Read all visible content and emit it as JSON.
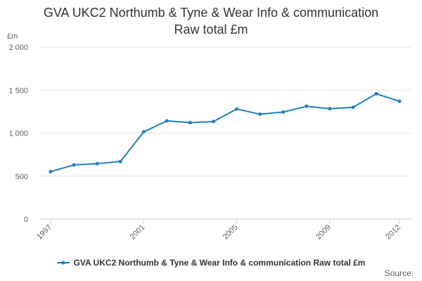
{
  "chart_data": {
    "type": "line",
    "title_line1": "GVA UKC2 Northumb & Tyne & Wear Info & communication",
    "title_line2": "Raw total £m",
    "unit_label": "£m",
    "x": [
      1997,
      1998,
      1999,
      2000,
      2001,
      2002,
      2003,
      2004,
      2005,
      2006,
      2007,
      2008,
      2009,
      2010,
      2011,
      2012
    ],
    "series": [
      {
        "name": "GVA UKC2 Northumb & Tyne & Wear Info & communication Raw total £m",
        "color": "#1F7FBD",
        "values": [
          553,
          630,
          645,
          670,
          1015,
          1143,
          1122,
          1135,
          1280,
          1220,
          1245,
          1312,
          1284,
          1300,
          1457,
          1370
        ]
      }
    ],
    "x_tick_labels": [
      "1997",
      "2001",
      "2005",
      "2009",
      "2012"
    ],
    "y_ticks": [
      0,
      500,
      1000,
      1500,
      2000
    ],
    "y_tick_labels": [
      "0",
      "500",
      "1 000",
      "1 500",
      "2 000"
    ],
    "ylim": [
      0,
      2000
    ],
    "xlim": [
      1997,
      2012
    ],
    "grid": true,
    "legend_position": "bottom"
  },
  "source_label": "Source:"
}
